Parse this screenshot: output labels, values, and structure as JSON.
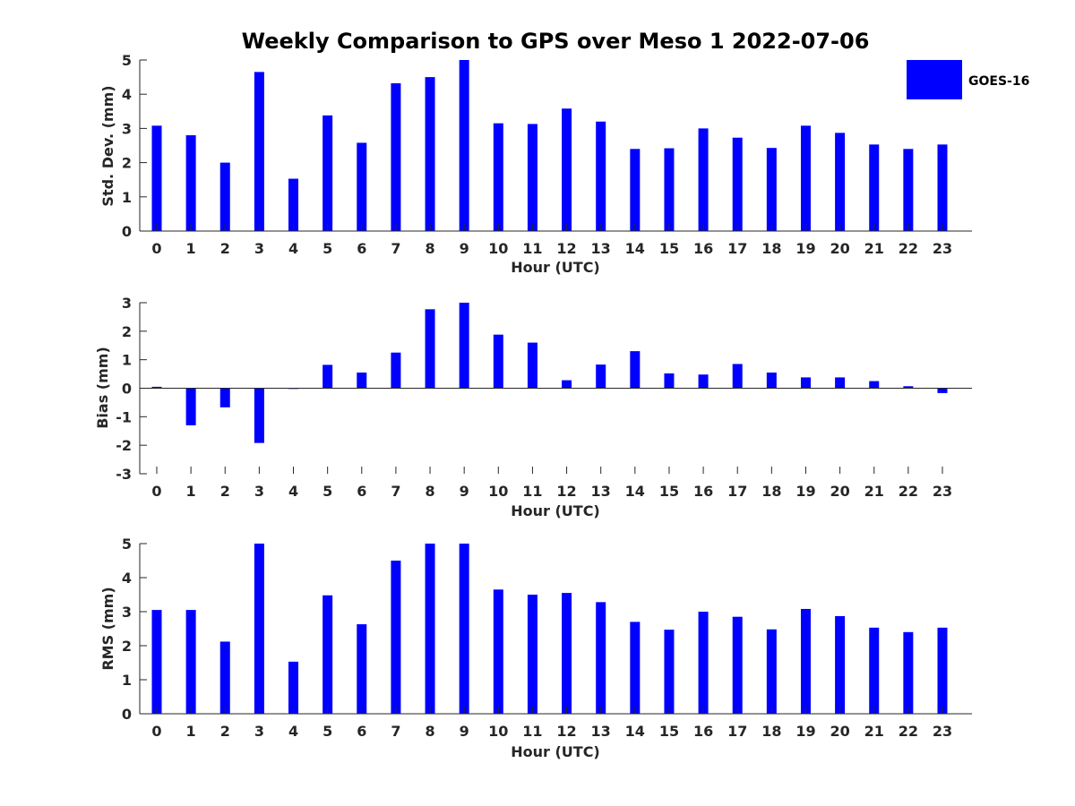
{
  "figure": {
    "title": "Weekly Comparison to GPS over Meso 1 2022-07-06",
    "legend": {
      "label": "GOES-16",
      "color": "#0000ff"
    }
  },
  "chart_data": [
    {
      "type": "bar",
      "categories": [
        "0",
        "1",
        "2",
        "3",
        "4",
        "5",
        "6",
        "7",
        "8",
        "9",
        "10",
        "11",
        "12",
        "13",
        "14",
        "15",
        "16",
        "17",
        "18",
        "19",
        "20",
        "21",
        "22",
        "23"
      ],
      "series": [
        {
          "name": "GOES-16",
          "values": [
            3.08,
            2.8,
            2.0,
            4.65,
            1.53,
            3.38,
            2.58,
            4.32,
            4.5,
            5.0,
            3.15,
            3.13,
            3.58,
            3.2,
            2.4,
            2.42,
            3.0,
            2.73,
            2.43,
            3.08,
            2.87,
            2.53,
            2.4,
            2.53
          ]
        }
      ],
      "xlabel": "Hour (UTC)",
      "ylabel": "Std. Dev. (mm)",
      "ylim": [
        0,
        5
      ],
      "yticks": [
        "0",
        "1",
        "2",
        "3",
        "4",
        "5"
      ],
      "color": "#0000ff"
    },
    {
      "type": "bar",
      "categories": [
        "0",
        "1",
        "2",
        "3",
        "4",
        "5",
        "6",
        "7",
        "8",
        "9",
        "10",
        "11",
        "12",
        "13",
        "14",
        "15",
        "16",
        "17",
        "18",
        "19",
        "20",
        "21",
        "22",
        "23"
      ],
      "series": [
        {
          "name": "GOES-16",
          "values": [
            0.05,
            -1.3,
            -0.67,
            -1.92,
            0.0,
            0.82,
            0.55,
            1.25,
            2.77,
            3.0,
            1.88,
            1.6,
            0.28,
            0.83,
            1.3,
            0.52,
            0.48,
            0.85,
            0.55,
            0.38,
            0.38,
            0.25,
            0.07,
            -0.17
          ]
        }
      ],
      "xlabel": "Hour (UTC)",
      "ylabel": "Bias (mm)",
      "ylim": [
        -3,
        3
      ],
      "yticks": [
        "-3",
        "-2",
        "-1",
        "0",
        "1",
        "2",
        "3"
      ],
      "color": "#0000ff"
    },
    {
      "type": "bar",
      "categories": [
        "0",
        "1",
        "2",
        "3",
        "4",
        "5",
        "6",
        "7",
        "8",
        "9",
        "10",
        "11",
        "12",
        "13",
        "14",
        "15",
        "16",
        "17",
        "18",
        "19",
        "20",
        "21",
        "22",
        "23"
      ],
      "series": [
        {
          "name": "GOES-16",
          "values": [
            3.05,
            3.05,
            2.12,
            5.0,
            1.53,
            3.48,
            2.63,
            4.5,
            5.0,
            5.0,
            3.65,
            3.5,
            3.55,
            3.28,
            2.7,
            2.47,
            3.0,
            2.85,
            2.48,
            3.08,
            2.87,
            2.53,
            2.4,
            2.53
          ]
        }
      ],
      "xlabel": "Hour (UTC)",
      "ylabel": "RMS (mm)",
      "ylim": [
        0,
        5
      ],
      "yticks": [
        "0",
        "1",
        "2",
        "3",
        "4",
        "5"
      ],
      "color": "#0000ff"
    }
  ]
}
